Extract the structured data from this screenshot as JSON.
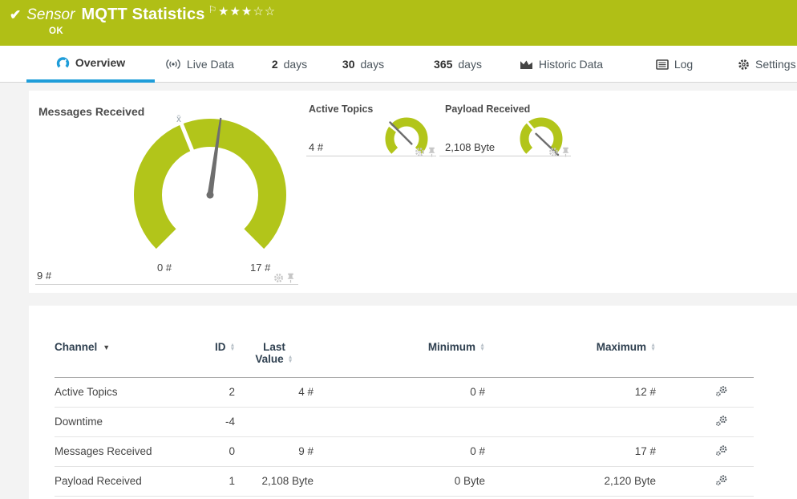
{
  "colors": {
    "header_bg": "#b0bf16",
    "accent_blue": "#1f9dd9",
    "gauge_green": "#b2c51a",
    "page_bg": "#f3f3f3"
  },
  "header": {
    "check_glyph": "✔",
    "kind_label": "Sensor",
    "title": "MQTT Statistics",
    "flag_glyph": "⚐",
    "rating_filled": "★★★",
    "rating_empty": "☆☆",
    "status_text": "OK"
  },
  "tabs": {
    "overview": {
      "label": "Overview",
      "active": true
    },
    "live_data": {
      "label": "Live Data"
    },
    "days2": {
      "num": "2",
      "label": "days"
    },
    "days30": {
      "num": "30",
      "label": "days"
    },
    "days365": {
      "num": "365",
      "label": "days"
    },
    "historic": {
      "label": "Historic Data"
    },
    "log": {
      "label": "Log"
    },
    "settings": {
      "label": "Settings"
    }
  },
  "gauges": {
    "main": {
      "title": "Messages Received",
      "value_label": "9 #",
      "scale_min_label": "0 #",
      "scale_max_label": "17 #",
      "avg_glyph": "x̄",
      "value": 9,
      "min": 0,
      "max": 17
    },
    "active_topics": {
      "title": "Active Topics",
      "value_label": "4 #",
      "value": 4,
      "min": 0,
      "max": 12
    },
    "payload": {
      "title": "Payload Received",
      "value_label": "2,108 Byte",
      "value": 2108,
      "min": 0,
      "max": 2120
    }
  },
  "table": {
    "headers": {
      "channel": "Channel",
      "id": "ID",
      "last_line1": "Last",
      "last_line2": "Value",
      "min": "Minimum",
      "max": "Maximum"
    },
    "sort_up": "▲",
    "sort_down": "▼",
    "caret": "▼",
    "rows": [
      {
        "channel": "Active Topics",
        "id": "2",
        "last": "4 #",
        "min": "0 #",
        "max": "12 #"
      },
      {
        "channel": "Downtime",
        "id": "-4",
        "last": "",
        "min": "",
        "max": ""
      },
      {
        "channel": "Messages Received",
        "id": "0",
        "last": "9 #",
        "min": "0 #",
        "max": "17 #"
      },
      {
        "channel": "Payload Received",
        "id": "1",
        "last": "2,108 Byte",
        "min": "0 Byte",
        "max": "2,120 Byte"
      }
    ]
  }
}
